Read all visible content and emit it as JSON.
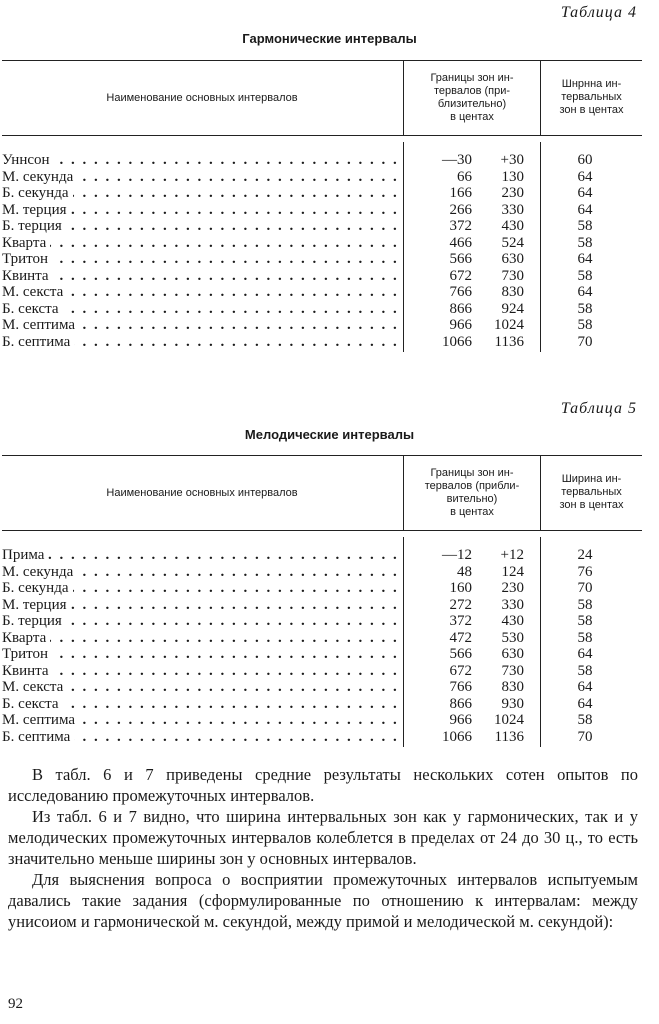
{
  "table4": {
    "label": "Таблица 4",
    "title": "Гармонические интервалы",
    "headers": {
      "name": "Наименование основных интервалов",
      "bounds": [
        "Границы зон ин-",
        "тервалов (при-",
        "близительно)",
        "в центах"
      ],
      "width": [
        "Шнрнна ин-",
        "тервальных",
        "зон в центах"
      ]
    },
    "rows": [
      {
        "name": "Уннсон",
        "lo": "—30",
        "hi": "+30",
        "w": "60"
      },
      {
        "name": "М. секунда",
        "lo": "66",
        "hi": "130",
        "w": "64"
      },
      {
        "name": "Б. секунда",
        "lo": "166",
        "hi": "230",
        "w": "64"
      },
      {
        "name": "М. терция",
        "lo": "266",
        "hi": "330",
        "w": "64"
      },
      {
        "name": "Б. терция",
        "lo": "372",
        "hi": "430",
        "w": "58"
      },
      {
        "name": "Кварта",
        "lo": "466",
        "hi": "524",
        "w": "58"
      },
      {
        "name": "Тритон",
        "lo": "566",
        "hi": "630",
        "w": "64"
      },
      {
        "name": "Квинта",
        "lo": "672",
        "hi": "730",
        "w": "58"
      },
      {
        "name": "М. секста",
        "lo": "766",
        "hi": "830",
        "w": "64"
      },
      {
        "name": "Б. секста",
        "lo": "866",
        "hi": "924",
        "w": "58"
      },
      {
        "name": "М. септима",
        "lo": "966",
        "hi": "1024",
        "w": "58"
      },
      {
        "name": "Б. септима",
        "lo": "1066",
        "hi": "1136",
        "w": "70"
      }
    ]
  },
  "table5": {
    "label": "Таблица 5",
    "title": "Мелодические интервалы",
    "headers": {
      "name": "Наименование основных интервалов",
      "bounds": [
        "Границы зон ин-",
        "тервалов (прибли-",
        "вительно)",
        "в центах"
      ],
      "width": [
        "Ширина ин-",
        "тервальных",
        "зон в центах"
      ]
    },
    "rows": [
      {
        "name": "Прима",
        "lo": "—12",
        "hi": "+12",
        "w": "24"
      },
      {
        "name": "М. секунда",
        "lo": "48",
        "hi": "124",
        "w": "76"
      },
      {
        "name": "Б. секунда",
        "lo": "160",
        "hi": "230",
        "w": "70"
      },
      {
        "name": "М. терция",
        "lo": "272",
        "hi": "330",
        "w": "58"
      },
      {
        "name": "Б. терция",
        "lo": "372",
        "hi": "430",
        "w": "58"
      },
      {
        "name": "Кварта",
        "lo": "472",
        "hi": "530",
        "w": "58"
      },
      {
        "name": "Тритон",
        "lo": "566",
        "hi": "630",
        "w": "64"
      },
      {
        "name": "Квинта",
        "lo": "672",
        "hi": "730",
        "w": "58"
      },
      {
        "name": "М. секста",
        "lo": "766",
        "hi": "830",
        "w": "64"
      },
      {
        "name": "Б. секста",
        "lo": "866",
        "hi": "930",
        "w": "64"
      },
      {
        "name": "М. септима",
        "lo": "966",
        "hi": "1024",
        "w": "58"
      },
      {
        "name": "Б. септима",
        "lo": "1066",
        "hi": "1136",
        "w": "70"
      }
    ]
  },
  "paragraphs": [
    "В табл. 6 и 7 приведены средние результаты нескольких сотен опытов по исследованию промежуточных интервалов.",
    "Из табл. 6 и 7 видно, что ширина интервальных зон как у гармонических, так и у мелодических промежуточных интервалов колеблется в пределах от 24 до 30 ц., то есть значительно меньше ширины зон у основных интервалов.",
    "Для выяснения вопроса о восприятии промежуточных интервалов испытуемым давались такие задания (сформулированные по отношению к интервалам: между унисоиом и гармонической м. секундой, между примой и мелодической м. секундой):"
  ],
  "page_number": "92"
}
